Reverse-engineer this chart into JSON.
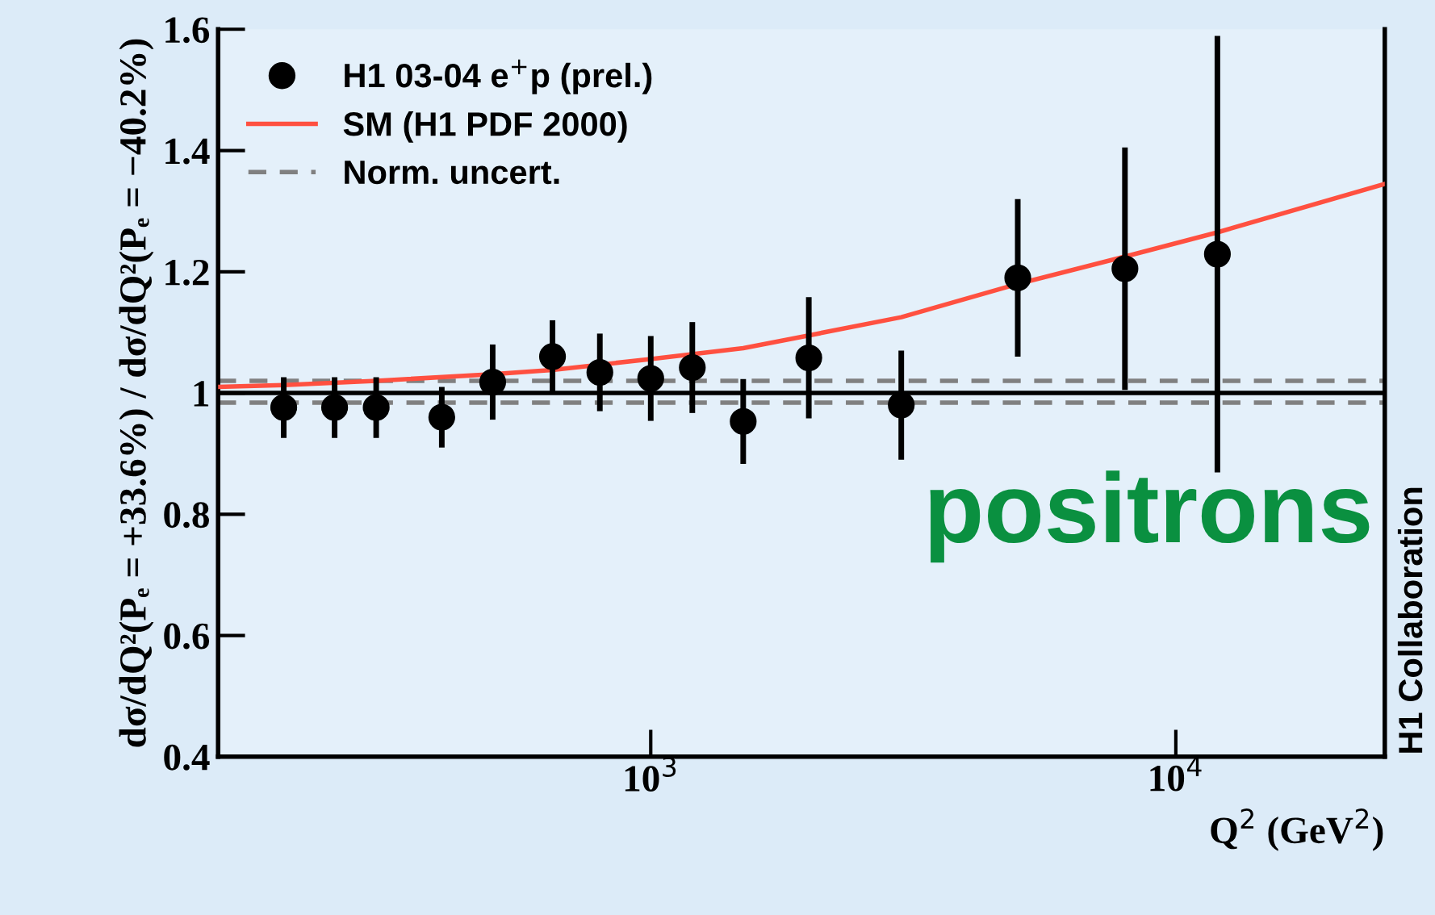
{
  "chart_data": {
    "type": "scatter",
    "xlabel": "Q$^{2}$ (GeV$^{2}$)",
    "ylabel": "dσ/dQ²(Pₑ = +33.6%) / dσ/dQ²(Pₑ = −40.2%)",
    "log": "x",
    "xlim": [
      150,
      25000
    ],
    "xticks": [
      {
        "value": 1000,
        "label": "10$^{3}$"
      },
      {
        "value": 10000,
        "label": "10$^{4}$"
      }
    ],
    "ylim": [
      0.4,
      1.6
    ],
    "yticks": [
      0.4,
      0.6,
      0.8,
      1,
      1.2,
      1.4,
      1.6
    ],
    "grid": false,
    "legend": "top left",
    "marker": "circle",
    "series": [
      {
        "name": "H1 03-04 e$^{+}$p (prel.)",
        "color": "#000000",
        "x": [
          200,
          250,
          300,
          400,
          500,
          650,
          800,
          1000,
          1200,
          1500,
          2000,
          3000,
          5000,
          8000,
          12000
        ],
        "values": [
          0.976,
          0.976,
          0.976,
          0.96,
          1.018,
          1.06,
          1.034,
          1.024,
          1.042,
          0.953,
          1.058,
          0.98,
          1.19,
          1.205,
          1.229
        ],
        "errors": [
          0.05,
          0.05,
          0.05,
          0.05,
          0.062,
          0.06,
          0.064,
          0.07,
          0.075,
          0.07,
          0.1,
          0.09,
          0.13,
          0.2,
          0.36
        ]
      },
      {
        "name": "SM (H1 PDF 2000)",
        "color": "#ff5040",
        "type": "line",
        "line_style": "solid",
        "marker": "none",
        "x": [
          150,
          200,
          300,
          500,
          650,
          1000,
          1500,
          2000,
          3000,
          5000,
          8000,
          12000,
          25000
        ],
        "values": [
          1.01,
          1.013,
          1.02,
          1.031,
          1.038,
          1.056,
          1.074,
          1.095,
          1.125,
          1.18,
          1.225,
          1.265,
          1.345
        ]
      }
    ],
    "ref_lines": [
      {
        "axis": "y",
        "value": 1,
        "color": "#000000",
        "line_style": "solid"
      },
      {
        "axis": "y",
        "value": 1.02,
        "color": "#808080",
        "line_style": "dashed",
        "label": "Norm. uncert."
      },
      {
        "axis": "y",
        "value": 0.984,
        "color": "#808080",
        "line_style": "dashed"
      }
    ],
    "annotations": [
      "positrons",
      "H1 Collaboration"
    ]
  }
}
